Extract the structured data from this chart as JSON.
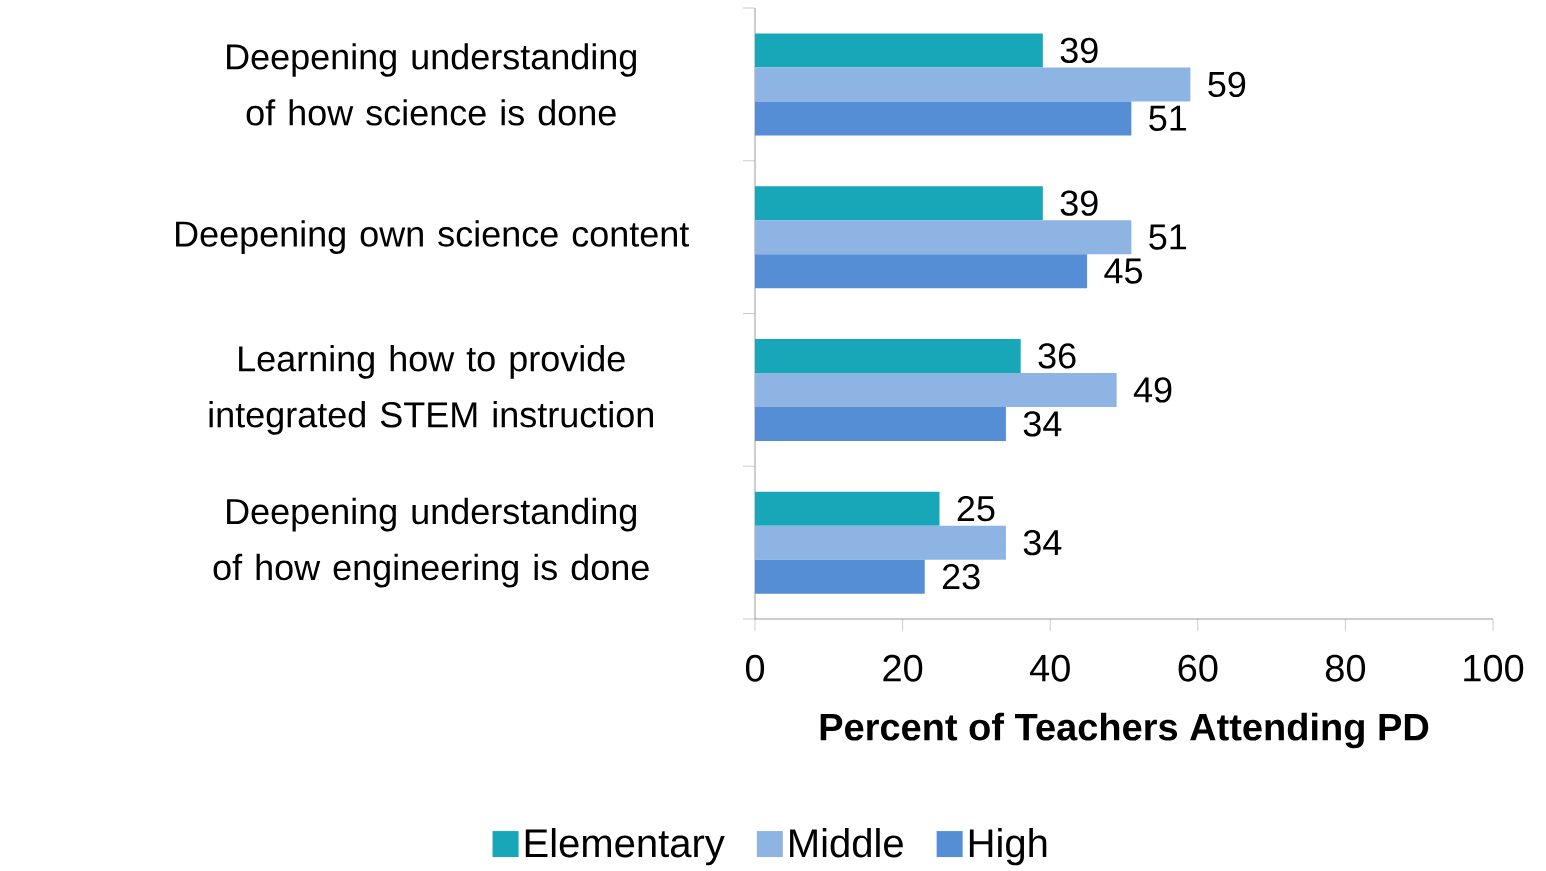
{
  "chart_data": {
    "type": "bar",
    "orientation": "horizontal",
    "categories": [
      "Deepening understanding of how science is done",
      "Deepening own science content",
      "Learning how to provide integrated STEM instruction",
      "Deepening understanding of how engineering is done"
    ],
    "series": [
      {
        "name": "Elementary",
        "color": "#17a7b8",
        "values": [
          39,
          39,
          36,
          25
        ]
      },
      {
        "name": "Middle",
        "color": "#8db4e2",
        "values": [
          59,
          51,
          49,
          34
        ]
      },
      {
        "name": "High",
        "color": "#558ed5",
        "values": [
          51,
          45,
          34,
          23
        ]
      }
    ],
    "xlabel": "Percent of Teachers Attending PD",
    "xlim": [
      0,
      100
    ],
    "xticks": [
      0,
      20,
      40,
      60,
      80,
      100
    ],
    "data_labels": true,
    "legend": "bottom",
    "grid": false
  }
}
